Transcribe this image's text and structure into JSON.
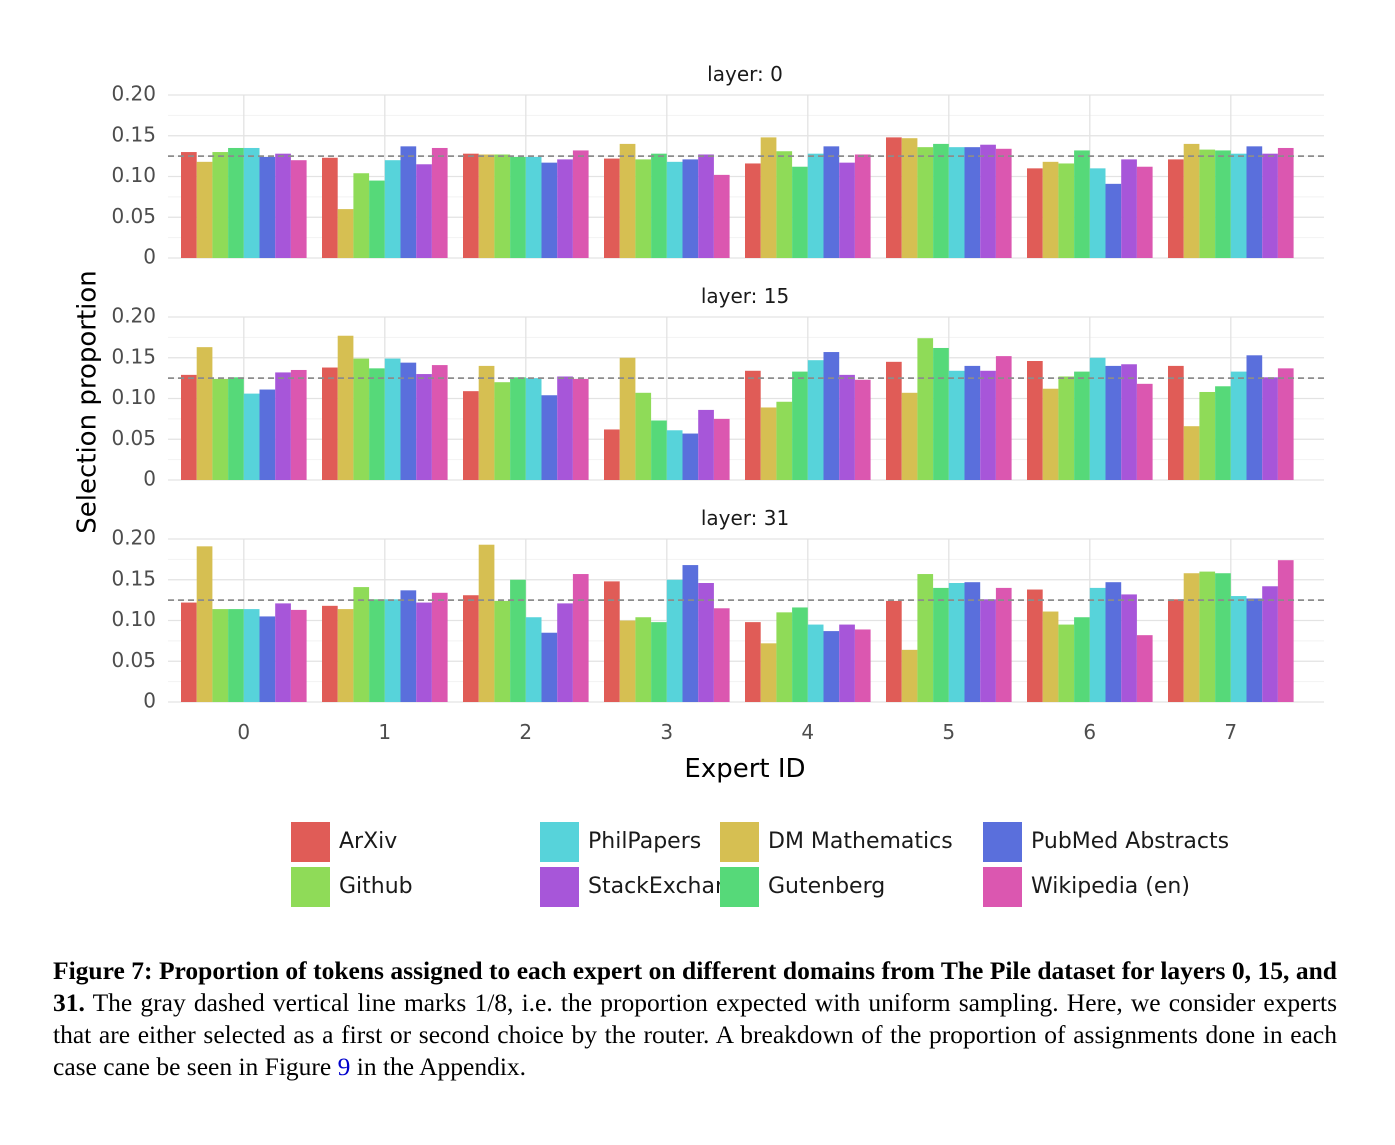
{
  "chart_data": {
    "type": "bar",
    "xlabel": "Expert ID",
    "ylabel": "Selection proportion",
    "ylim": [
      0,
      0.2
    ],
    "yticks": [
      "0",
      "0.05",
      "0.10",
      "0.15",
      "0.20"
    ],
    "reference_line": 0.125,
    "categories": [
      "0",
      "1",
      "2",
      "3",
      "4",
      "5",
      "6",
      "7"
    ],
    "series_names": [
      "ArXiv",
      "DM Mathematics",
      "Github",
      "Gutenberg",
      "PhilPapers",
      "PubMed Abstracts",
      "StackExchange",
      "Wikipedia (en)"
    ],
    "colors": [
      "#e05c57",
      "#d6bf52",
      "#8fdb58",
      "#56d979",
      "#57d3da",
      "#5a6fdc",
      "#a756d9",
      "#db57b0"
    ],
    "legend_order": [
      0,
      2,
      4,
      6,
      1,
      3,
      5,
      7
    ],
    "panels": [
      {
        "title": "layer: 0",
        "series": [
          {
            "name": "ArXiv",
            "values": [
              0.13,
              0.123,
              0.128,
              0.122,
              0.116,
              0.148,
              0.11,
              0.121
            ]
          },
          {
            "name": "DM Mathematics",
            "values": [
              0.118,
              0.06,
              0.127,
              0.14,
              0.148,
              0.147,
              0.118,
              0.14
            ]
          },
          {
            "name": "Github",
            "values": [
              0.13,
              0.104,
              0.127,
              0.121,
              0.131,
              0.136,
              0.116,
              0.133
            ]
          },
          {
            "name": "Gutenberg",
            "values": [
              0.135,
              0.095,
              0.124,
              0.128,
              0.112,
              0.14,
              0.132,
              0.132
            ]
          },
          {
            "name": "PhilPapers",
            "values": [
              0.135,
              0.12,
              0.124,
              0.118,
              0.128,
              0.136,
              0.11,
              0.128
            ]
          },
          {
            "name": "PubMed Abstracts",
            "values": [
              0.124,
              0.137,
              0.117,
              0.121,
              0.137,
              0.136,
              0.091,
              0.137
            ]
          },
          {
            "name": "StackExchange",
            "values": [
              0.128,
              0.115,
              0.121,
              0.127,
              0.117,
              0.139,
              0.121,
              0.128
            ]
          },
          {
            "name": "Wikipedia (en)",
            "values": [
              0.12,
              0.135,
              0.132,
              0.102,
              0.127,
              0.134,
              0.112,
              0.135
            ]
          }
        ]
      },
      {
        "title": "layer: 15",
        "series": [
          {
            "name": "ArXiv",
            "values": [
              0.129,
              0.138,
              0.109,
              0.062,
              0.134,
              0.145,
              0.146,
              0.14
            ]
          },
          {
            "name": "DM Mathematics",
            "values": [
              0.163,
              0.177,
              0.14,
              0.15,
              0.089,
              0.107,
              0.112,
              0.066
            ]
          },
          {
            "name": "Github",
            "values": [
              0.124,
              0.149,
              0.12,
              0.107,
              0.096,
              0.174,
              0.127,
              0.108
            ]
          },
          {
            "name": "Gutenberg",
            "values": [
              0.126,
              0.137,
              0.126,
              0.073,
              0.133,
              0.162,
              0.133,
              0.115
            ]
          },
          {
            "name": "PhilPapers",
            "values": [
              0.106,
              0.149,
              0.125,
              0.061,
              0.147,
              0.134,
              0.15,
              0.133
            ]
          },
          {
            "name": "PubMed Abstracts",
            "values": [
              0.111,
              0.144,
              0.104,
              0.057,
              0.157,
              0.14,
              0.14,
              0.153
            ]
          },
          {
            "name": "StackExchange",
            "values": [
              0.132,
              0.13,
              0.127,
              0.086,
              0.129,
              0.134,
              0.142,
              0.126
            ]
          },
          {
            "name": "Wikipedia (en)",
            "values": [
              0.135,
              0.141,
              0.124,
              0.075,
              0.123,
              0.152,
              0.118,
              0.137
            ]
          }
        ]
      },
      {
        "title": "layer: 31",
        "series": [
          {
            "name": "ArXiv",
            "values": [
              0.122,
              0.118,
              0.131,
              0.148,
              0.098,
              0.124,
              0.138,
              0.126
            ]
          },
          {
            "name": "DM Mathematics",
            "values": [
              0.191,
              0.114,
              0.193,
              0.1,
              0.072,
              0.064,
              0.111,
              0.158
            ]
          },
          {
            "name": "Github",
            "values": [
              0.114,
              0.141,
              0.124,
              0.104,
              0.11,
              0.157,
              0.095,
              0.16
            ]
          },
          {
            "name": "Gutenberg",
            "values": [
              0.114,
              0.126,
              0.15,
              0.098,
              0.116,
              0.14,
              0.104,
              0.158
            ]
          },
          {
            "name": "PhilPapers",
            "values": [
              0.114,
              0.126,
              0.104,
              0.15,
              0.095,
              0.146,
              0.14,
              0.13
            ]
          },
          {
            "name": "PubMed Abstracts",
            "values": [
              0.105,
              0.137,
              0.085,
              0.168,
              0.087,
              0.147,
              0.147,
              0.127
            ]
          },
          {
            "name": "StackExchange",
            "values": [
              0.121,
              0.122,
              0.121,
              0.146,
              0.095,
              0.126,
              0.132,
              0.142
            ]
          },
          {
            "name": "Wikipedia (en)",
            "values": [
              0.113,
              0.134,
              0.157,
              0.115,
              0.089,
              0.14,
              0.082,
              0.174
            ]
          }
        ]
      }
    ]
  },
  "caption": {
    "label": "Figure 7: Proportion of tokens assigned to each expert on different domains from The Pile dataset for layers 0, 15, and 31.",
    "text_before_math": " The gray dashed vertical line marks ",
    "math": "1/8",
    "text_middle": ", i.e.  the proportion expected with uniform sampling.  Here, we consider experts that are either selected as a first or second choice by the router.  A breakdown of the proportion of assignments done in each case cane be seen in Figure ",
    "figure_ref": "9",
    "text_end": " in the Appendix."
  }
}
